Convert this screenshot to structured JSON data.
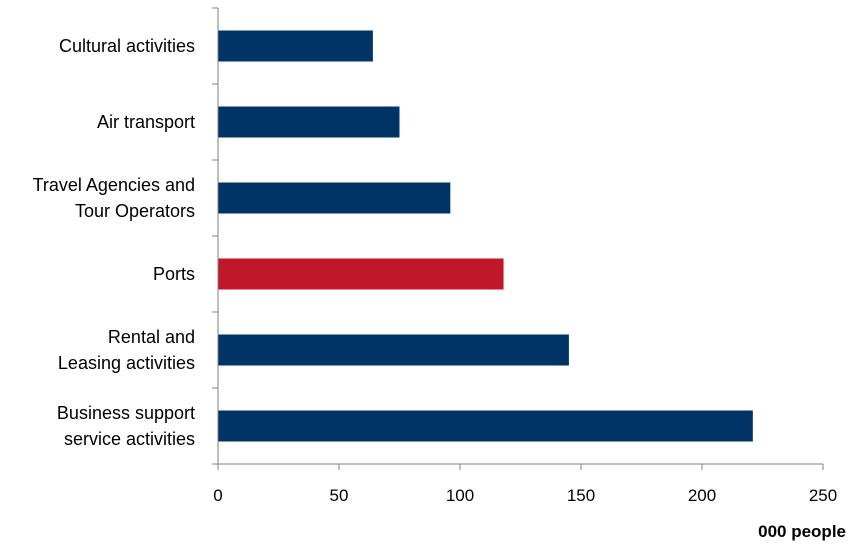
{
  "chart_data": {
    "type": "bar",
    "orientation": "horizontal",
    "categories": [
      [
        "Business support",
        "service activities"
      ],
      [
        "Rental and",
        "Leasing activities"
      ],
      [
        "Ports"
      ],
      [
        "Travel Agencies and",
        "Tour Operators"
      ],
      [
        "Air transport"
      ],
      [
        "Cultural activities"
      ]
    ],
    "values": [
      221,
      145,
      118,
      96,
      75,
      64
    ],
    "highlight_index": 2,
    "colors": {
      "default": "#003366",
      "highlight": "#C0182A"
    },
    "xlabel": "000 people",
    "xlim": [
      0,
      250
    ],
    "xticks": [
      0,
      50,
      100,
      150,
      200,
      250
    ],
    "grid": false,
    "legend": "none"
  }
}
